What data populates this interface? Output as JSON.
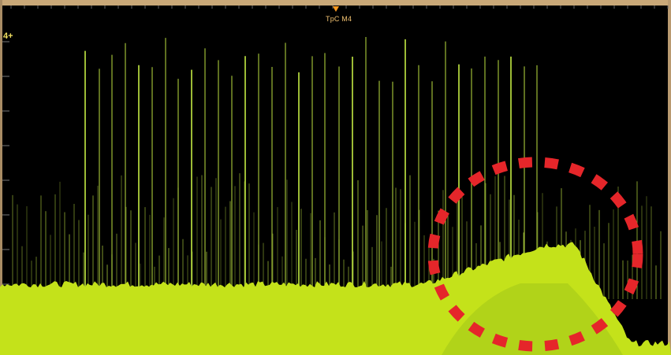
{
  "screen": {
    "trigger_label": "TpC M4",
    "channel_marker": "4+"
  },
  "colors": {
    "background": "#000000",
    "trace": "#c4e21a",
    "spike": "#b8dc40",
    "highlight_circle": "#e5262a",
    "grid": "#4a4a4a"
  },
  "highlight": {
    "style": "dashed-circle"
  }
}
